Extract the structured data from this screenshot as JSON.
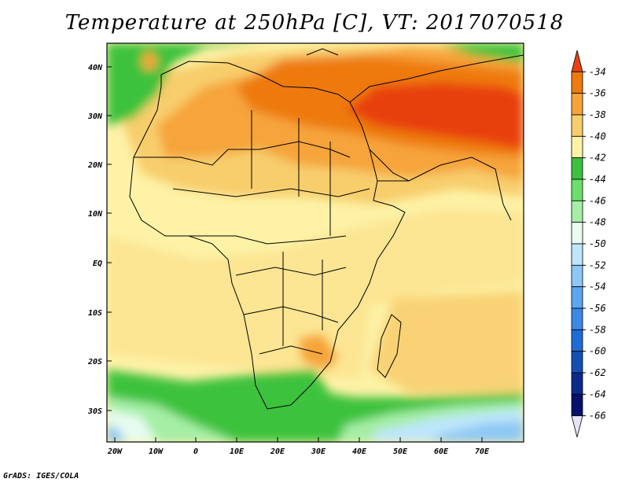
{
  "title": "Temperature at 250hPa [C], VT: 2017070518",
  "footer": "GrADS: IGES/COLA",
  "map": {
    "lon_labels": [
      "20W",
      "10W",
      "0",
      "10E",
      "20E",
      "30E",
      "40E",
      "50E",
      "60E",
      "70E"
    ],
    "lat_labels": [
      "40N",
      "30N",
      "20N",
      "10N",
      "EQ",
      "10S",
      "20S",
      "30S"
    ]
  },
  "colorbar": {
    "levels": [
      "-34",
      "-36",
      "-38",
      "-40",
      "-42",
      "-44",
      "-46",
      "-48",
      "-50",
      "-52",
      "-54",
      "-56",
      "-58",
      "-60",
      "-62",
      "-64",
      "-66"
    ],
    "colors": [
      "#e8410f",
      "#ee7a10",
      "#f6a43a",
      "#f8cd6c",
      "#fdf2a6",
      "#3cc23c",
      "#6cde6c",
      "#a6eea6",
      "#e6fcf0",
      "#bde6fb",
      "#8ec7f5",
      "#5ca8ee",
      "#3b88e6",
      "#1e6cd8",
      "#1450b4",
      "#0a2a8c",
      "#04106a",
      "#e8e4f8"
    ]
  }
}
